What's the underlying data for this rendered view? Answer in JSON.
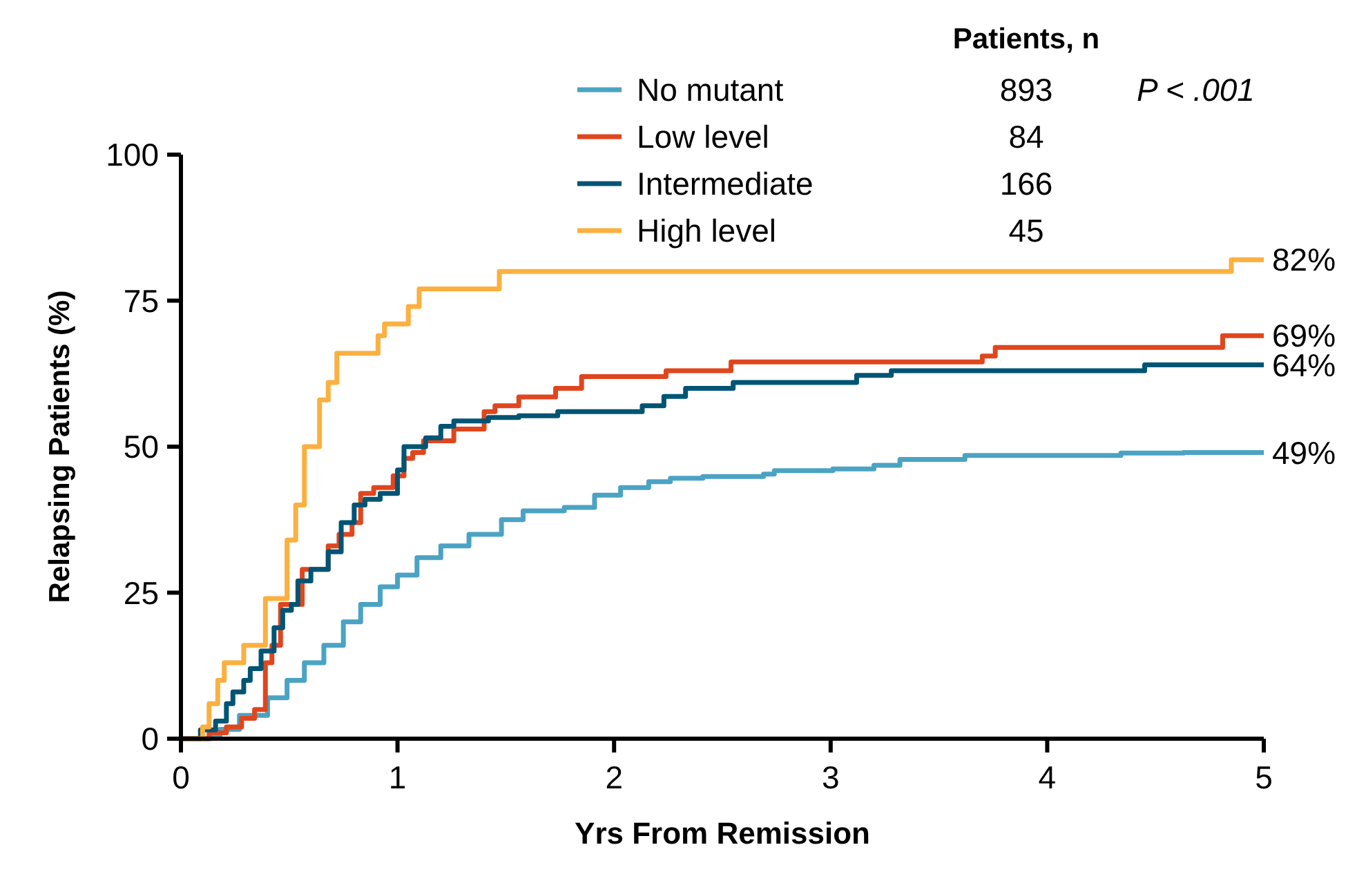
{
  "chart_data": {
    "type": "step",
    "xlabel": "Yrs From Remission",
    "ylabel": "Relapsing Patients (%)",
    "legend_title": "Patients, n",
    "legend": "top",
    "xlim": [
      0,
      5
    ],
    "ylim": [
      0,
      100
    ],
    "xticks": [
      0,
      1,
      2,
      3,
      4,
      5
    ],
    "yticks": [
      0,
      25,
      50,
      75,
      100
    ],
    "grid": false,
    "marker": "none",
    "line_style": "solid",
    "series": [
      {
        "name": "No mutant",
        "color": "#4ba3c3",
        "x": [
          0,
          0.14,
          0.18,
          0.27,
          0.4,
          0.49,
          0.57,
          0.66,
          0.75,
          0.83,
          0.92,
          1.0,
          1.09,
          1.2,
          1.33,
          1.48,
          1.58,
          1.77,
          1.91,
          2.03,
          2.16,
          2.26,
          2.41,
          2.69,
          2.74,
          3.01,
          3.2,
          3.32,
          3.62,
          4.34,
          4.63,
          5
        ],
        "values": [
          0,
          0.4,
          1.6,
          4,
          7,
          10,
          13,
          16,
          20,
          23,
          26,
          28,
          31,
          33,
          35,
          37.5,
          39,
          39.6,
          41.7,
          43,
          44,
          44.6,
          44.9,
          45.3,
          45.9,
          46.2,
          46.8,
          47.8,
          48.5,
          48.9,
          49,
          49
        ],
        "value_labels": [
          null,
          null,
          null,
          null,
          null,
          null,
          null,
          null,
          null,
          null,
          null,
          null,
          null,
          null,
          null,
          null,
          null,
          null,
          null,
          null,
          null,
          null,
          null,
          null,
          null,
          null,
          null,
          null,
          null,
          null,
          null,
          "49%"
        ]
      },
      {
        "name": "Low level",
        "color": "#e0461e",
        "x": [
          0,
          0.13,
          0.21,
          0.28,
          0.34,
          0.39,
          0.42,
          0.46,
          0.56,
          0.68,
          0.73,
          0.79,
          0.83,
          0.89,
          0.98,
          1.03,
          1.07,
          1.12,
          1.26,
          1.4,
          1.45,
          1.56,
          1.73,
          1.85,
          2.24,
          2.54,
          3.7,
          3.76,
          4.81,
          5
        ],
        "values": [
          0,
          1,
          2,
          3.5,
          5,
          13,
          16,
          23,
          29,
          33,
          35,
          37,
          42,
          43,
          45,
          48,
          49,
          51,
          53,
          56,
          57,
          58.5,
          60,
          62,
          63,
          64.5,
          65.5,
          67,
          69,
          69
        ],
        "value_labels": [
          null,
          null,
          null,
          null,
          null,
          null,
          null,
          null,
          null,
          null,
          null,
          null,
          null,
          null,
          null,
          null,
          null,
          null,
          null,
          null,
          null,
          null,
          null,
          null,
          null,
          null,
          null,
          null,
          null,
          "69%"
        ]
      },
      {
        "name": "Intermediate",
        "color": "#005474",
        "x": [
          0,
          0.09,
          0.16,
          0.21,
          0.24,
          0.29,
          0.32,
          0.37,
          0.43,
          0.47,
          0.51,
          0.54,
          0.6,
          0.68,
          0.74,
          0.8,
          0.85,
          0.92,
          1.0,
          1.03,
          1.13,
          1.2,
          1.26,
          1.42,
          1.56,
          1.74,
          2.13,
          2.23,
          2.33,
          2.55,
          3.12,
          3.28,
          4.45,
          5
        ],
        "values": [
          0,
          1.5,
          3,
          6,
          8,
          10,
          12,
          15,
          19,
          22,
          23,
          27,
          29,
          32,
          37,
          40,
          41,
          42,
          46,
          50,
          51.5,
          53.5,
          54.4,
          55,
          55.3,
          56,
          57,
          58.6,
          60,
          61,
          62.2,
          63,
          64,
          64
        ],
        "value_labels": [
          null,
          null,
          null,
          null,
          null,
          null,
          null,
          null,
          null,
          null,
          null,
          null,
          null,
          null,
          null,
          null,
          null,
          null,
          null,
          null,
          null,
          null,
          null,
          null,
          null,
          null,
          null,
          null,
          null,
          null,
          null,
          null,
          null,
          "64%"
        ]
      },
      {
        "name": "High level",
        "color": "#fbb040",
        "x": [
          0,
          0.1,
          0.13,
          0.17,
          0.2,
          0.29,
          0.39,
          0.49,
          0.53,
          0.57,
          0.64,
          0.68,
          0.72,
          0.91,
          0.94,
          1.05,
          1.1,
          1.47,
          4.85,
          5
        ],
        "values": [
          0,
          2,
          6,
          10,
          13,
          16,
          24,
          34,
          40,
          50,
          58,
          61,
          66,
          69,
          71,
          74,
          77,
          80,
          82,
          82
        ],
        "value_labels": [
          null,
          null,
          null,
          null,
          null,
          null,
          null,
          null,
          null,
          null,
          null,
          null,
          null,
          null,
          null,
          null,
          null,
          null,
          null,
          "82%"
        ]
      }
    ],
    "annotations": [
      "893",
      "84",
      "166",
      "45",
      "P < .001"
    ]
  }
}
